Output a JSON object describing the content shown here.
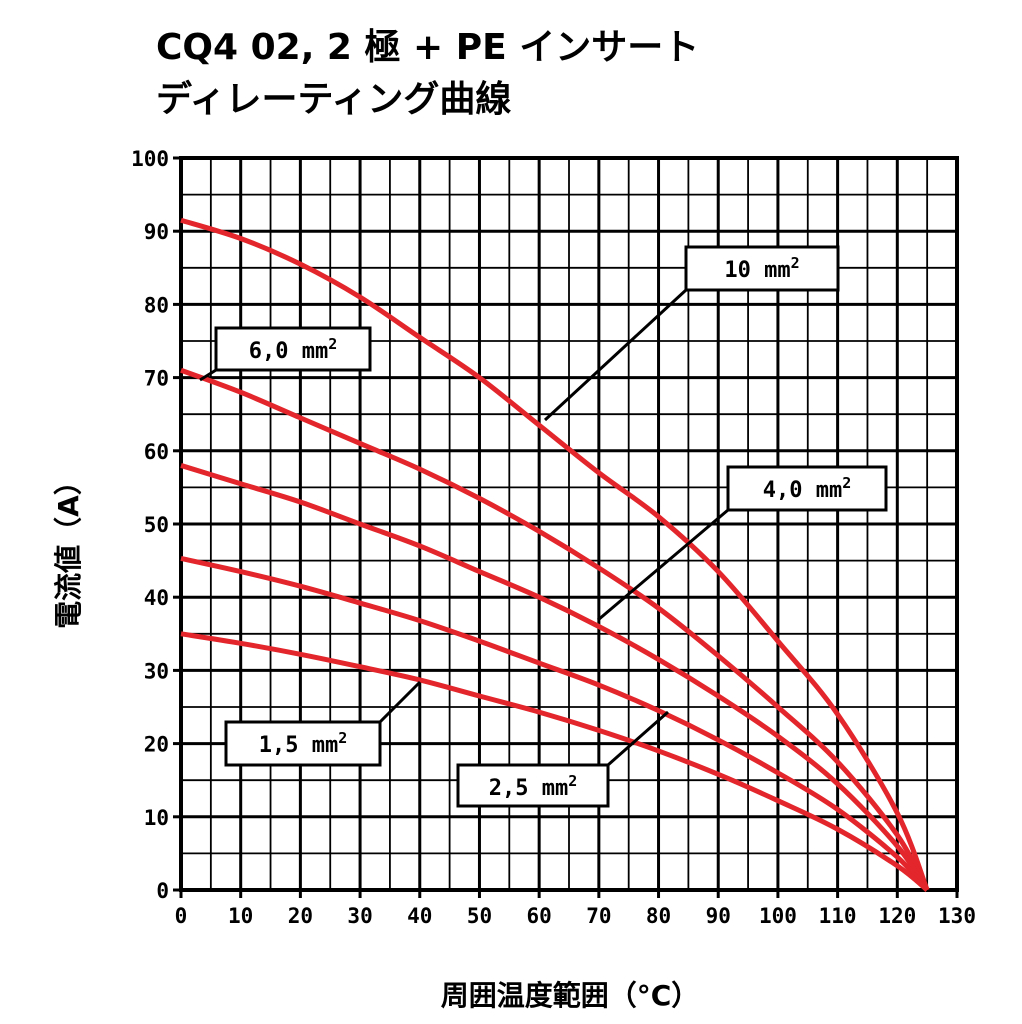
{
  "chart_data": {
    "type": "line",
    "title": "CQ4 02, 2 極 + PE インサート",
    "subtitle": "ディレーティング曲線",
    "xlabel": "周囲温度範囲（°C）",
    "ylabel": "電流値（A）",
    "xlim": [
      0,
      130
    ],
    "ylim": [
      0,
      100
    ],
    "xticks": [
      "0",
      "10",
      "20",
      "30",
      "40",
      "50",
      "60",
      "70",
      "80",
      "90",
      "100",
      "110",
      "120",
      "130"
    ],
    "yticks": [
      "0",
      "10",
      "20",
      "30",
      "40",
      "50",
      "60",
      "70",
      "80",
      "90",
      "100"
    ],
    "grid": true,
    "line_color": "#e3262b",
    "series": [
      {
        "name": "10 mm²",
        "label": "10 mm",
        "sup": "2",
        "points": [
          [
            0,
            91.5
          ],
          [
            10,
            89
          ],
          [
            20,
            85.5
          ],
          [
            30,
            81
          ],
          [
            40,
            75.5
          ],
          [
            50,
            70
          ],
          [
            60,
            63.5
          ],
          [
            70,
            57
          ],
          [
            80,
            51
          ],
          [
            90,
            43.5
          ],
          [
            100,
            34
          ],
          [
            110,
            24
          ],
          [
            120,
            10.5
          ],
          [
            125,
            0
          ]
        ]
      },
      {
        "name": "6,0 mm²",
        "label": "6,0 mm",
        "sup": "2",
        "points": [
          [
            0,
            71
          ],
          [
            10,
            68
          ],
          [
            20,
            64.5
          ],
          [
            30,
            61
          ],
          [
            40,
            57.5
          ],
          [
            50,
            53.5
          ],
          [
            60,
            49
          ],
          [
            70,
            44
          ],
          [
            80,
            38.5
          ],
          [
            90,
            32
          ],
          [
            100,
            25
          ],
          [
            110,
            17.5
          ],
          [
            120,
            7.5
          ],
          [
            125,
            0
          ]
        ]
      },
      {
        "name": "4,0 mm²",
        "label": "4,0 mm",
        "sup": "2",
        "points": [
          [
            0,
            58
          ],
          [
            10,
            55.5
          ],
          [
            20,
            53
          ],
          [
            30,
            50
          ],
          [
            40,
            47
          ],
          [
            50,
            43.5
          ],
          [
            60,
            40
          ],
          [
            70,
            36
          ],
          [
            80,
            31.5
          ],
          [
            90,
            26.5
          ],
          [
            100,
            21
          ],
          [
            110,
            14.5
          ],
          [
            120,
            6
          ],
          [
            125,
            0
          ]
        ]
      },
      {
        "name": "2,5 mm²",
        "label": "2,5 mm",
        "sup": "2",
        "points": [
          [
            0,
            45.3
          ],
          [
            10,
            43.5
          ],
          [
            20,
            41.5
          ],
          [
            30,
            39.2
          ],
          [
            40,
            36.8
          ],
          [
            50,
            34
          ],
          [
            60,
            31
          ],
          [
            70,
            28
          ],
          [
            80,
            24.5
          ],
          [
            90,
            20.5
          ],
          [
            100,
            16
          ],
          [
            110,
            11
          ],
          [
            120,
            4.5
          ],
          [
            125,
            0
          ]
        ]
      },
      {
        "name": "1,5 mm²",
        "label": "1,5 mm",
        "sup": "2",
        "points": [
          [
            0,
            35
          ],
          [
            10,
            33.7
          ],
          [
            20,
            32.2
          ],
          [
            30,
            30.5
          ],
          [
            40,
            28.7
          ],
          [
            50,
            26.5
          ],
          [
            60,
            24.3
          ],
          [
            70,
            21.8
          ],
          [
            80,
            19
          ],
          [
            90,
            15.8
          ],
          [
            100,
            12.2
          ],
          [
            110,
            8.3
          ],
          [
            120,
            3.3
          ],
          [
            125,
            0
          ]
        ]
      }
    ]
  }
}
